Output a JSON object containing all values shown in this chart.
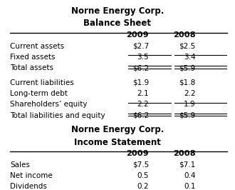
{
  "title1": "Norne Energy Corp.",
  "title2": "Balance Sheet",
  "bs_header": [
    "",
    "2009",
    "2008"
  ],
  "bs_rows": [
    [
      "Current assets",
      "$2.7",
      "$2.5"
    ],
    [
      "Fixed assets",
      "3.5",
      "3.4"
    ],
    [
      "Total assets",
      "$6.2",
      "$5.9"
    ],
    [
      "Current liabilities",
      "$1.9",
      "$1.8"
    ],
    [
      "Long-term debt",
      "2.1",
      "2.2"
    ],
    [
      "Shareholders’ equity",
      "2.2",
      "1.9"
    ],
    [
      "Total liabilities and equity",
      "$6.2",
      "$5.9"
    ]
  ],
  "bs_underline_rows": [
    1,
    2,
    5,
    6
  ],
  "bs_double_underline_rows": [
    2,
    6
  ],
  "bs_gap_after": [
    2
  ],
  "title3": "Norne Energy Corp.",
  "title4": "Income Statement",
  "is_header": [
    "",
    "2009",
    "2008"
  ],
  "is_rows": [
    [
      "Sales",
      "$7.5",
      "$7.1"
    ],
    [
      "Net income",
      "0.5",
      "0.4"
    ],
    [
      "Dividends",
      "0.2",
      "0.1"
    ]
  ],
  "background": "#ffffff",
  "text_color": "#000000",
  "font_size": 7.5,
  "header_font_size": 8.2,
  "title_font_size": 8.5
}
